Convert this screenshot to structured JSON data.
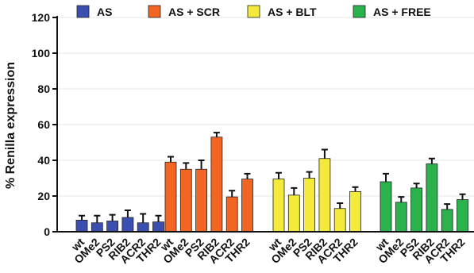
{
  "chart_data": {
    "type": "bar",
    "ylabel": "% Renilla expression",
    "ylim": [
      0,
      120
    ],
    "yticks": [
      0,
      20,
      40,
      60,
      80,
      100,
      120
    ],
    "grid": true,
    "legend_position": "top",
    "series": [
      {
        "name": "AS",
        "color": "#3b4fb0",
        "categories": [
          "wt",
          "OMe2",
          "PS2",
          "RIB2",
          "ACR2",
          "THR2"
        ],
        "values": [
          6.5,
          5,
          6,
          8,
          5,
          5.5
        ],
        "errors": [
          2.5,
          4,
          3.5,
          4,
          5,
          3.5
        ]
      },
      {
        "name": "AS + SCR",
        "color": "#f26522",
        "categories": [
          "wt",
          "OMe2",
          "PS2",
          "RIB2",
          "ACR2",
          "THR2"
        ],
        "values": [
          39,
          35,
          35,
          53,
          19.5,
          29.5
        ],
        "errors": [
          3,
          3.5,
          5,
          2.5,
          3.5,
          3
        ]
      },
      {
        "name": "AS + BLT",
        "color": "#f3ea3b",
        "categories": [
          "wt",
          "OMe2",
          "PS2",
          "RIB2",
          "ACR2",
          "THR2"
        ],
        "values": [
          29.5,
          20.5,
          30,
          41,
          13,
          22.5
        ],
        "errors": [
          3.5,
          4,
          3.5,
          5,
          3,
          2.5
        ]
      },
      {
        "name": "AS + FREE",
        "color": "#2bb24c",
        "categories": [
          "wt",
          "OMe2",
          "PS2",
          "RIB2",
          "ACR2",
          "THR2"
        ],
        "values": [
          28,
          16.5,
          24.5,
          38,
          12.5,
          18
        ],
        "errors": [
          4.5,
          3,
          2.5,
          3,
          3,
          3
        ]
      }
    ]
  }
}
